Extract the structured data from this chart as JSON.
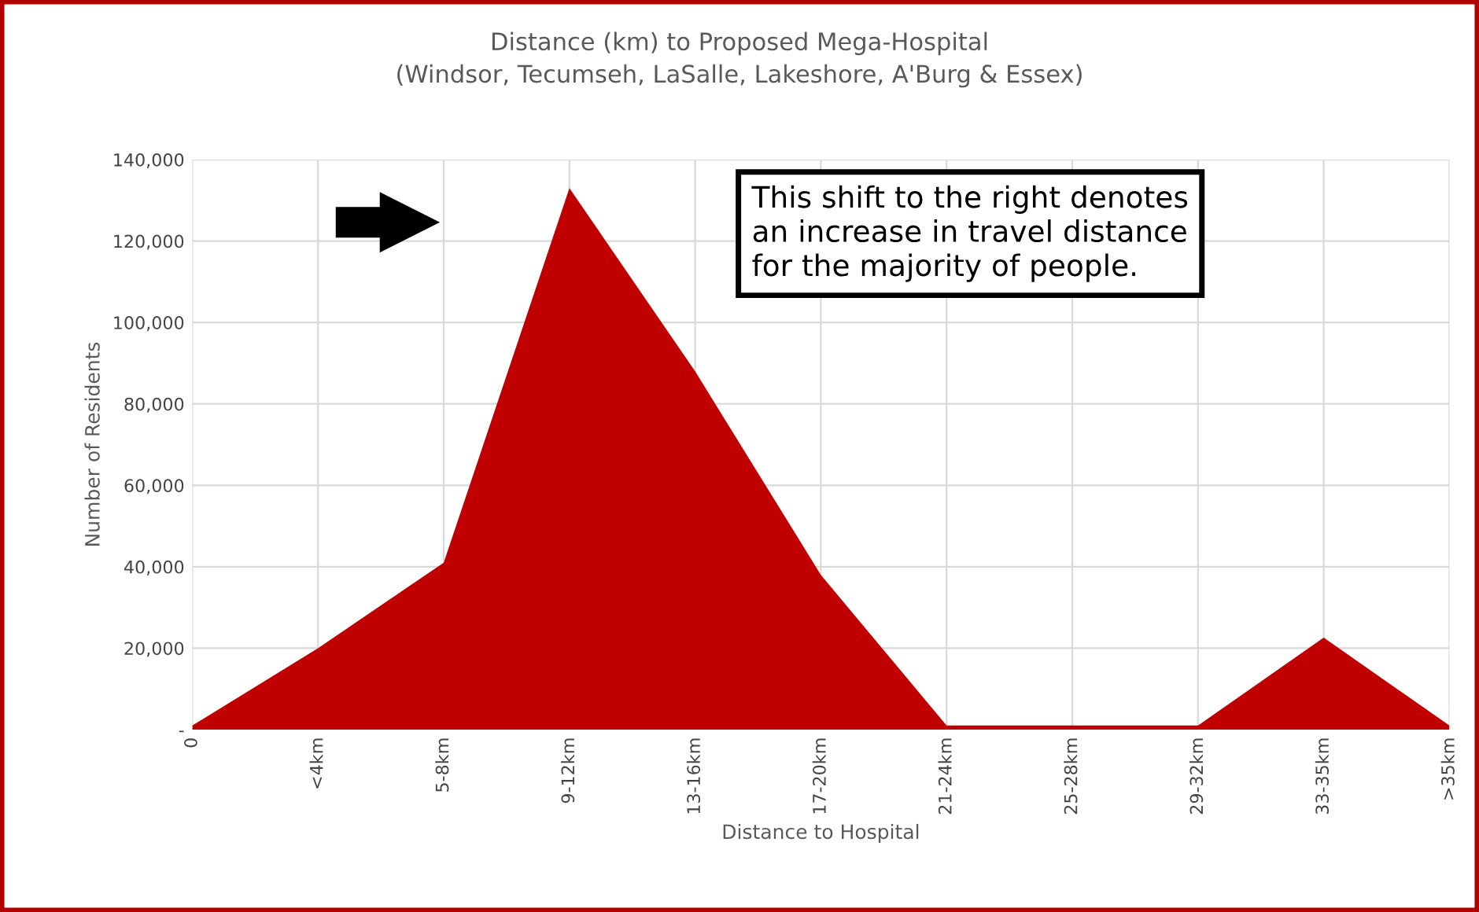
{
  "chart_data": {
    "type": "area",
    "title": "Distance (km) to Proposed Mega-Hospital\n(Windsor, Tecumseh, LaSalle, Lakeshore, A'Burg & Essex)",
    "xlabel": "Distance to Hospital",
    "ylabel": "Number of Residents",
    "categories": [
      "0",
      "<4km",
      "5-8km",
      "9-12km",
      "13-16km",
      "17-20km",
      "21-24km",
      "25-28km",
      "29-32km",
      "33-35km",
      ">35km"
    ],
    "series": [
      {
        "color": "#c00000",
        "values": [
          1000,
          20000,
          41000,
          133000,
          88000,
          38000,
          1000,
          1000,
          1000,
          22600,
          1000
        ]
      }
    ],
    "ylim": [
      0,
      140000
    ],
    "yticks": [
      {
        "value": 0,
        "label": "-"
      },
      {
        "value": 20000,
        "label": "20,000"
      },
      {
        "value": 40000,
        "label": "40,000"
      },
      {
        "value": 60000,
        "label": "60,000"
      },
      {
        "value": 80000,
        "label": "80,000"
      },
      {
        "value": 100000,
        "label": "100,000"
      },
      {
        "value": 120000,
        "label": "120,000"
      },
      {
        "value": 140000,
        "label": "140,000"
      }
    ],
    "grid": true,
    "legend": false,
    "annotations": [
      "This shift to the right denotes\nan increase in travel distance\nfor the majority of people."
    ]
  }
}
